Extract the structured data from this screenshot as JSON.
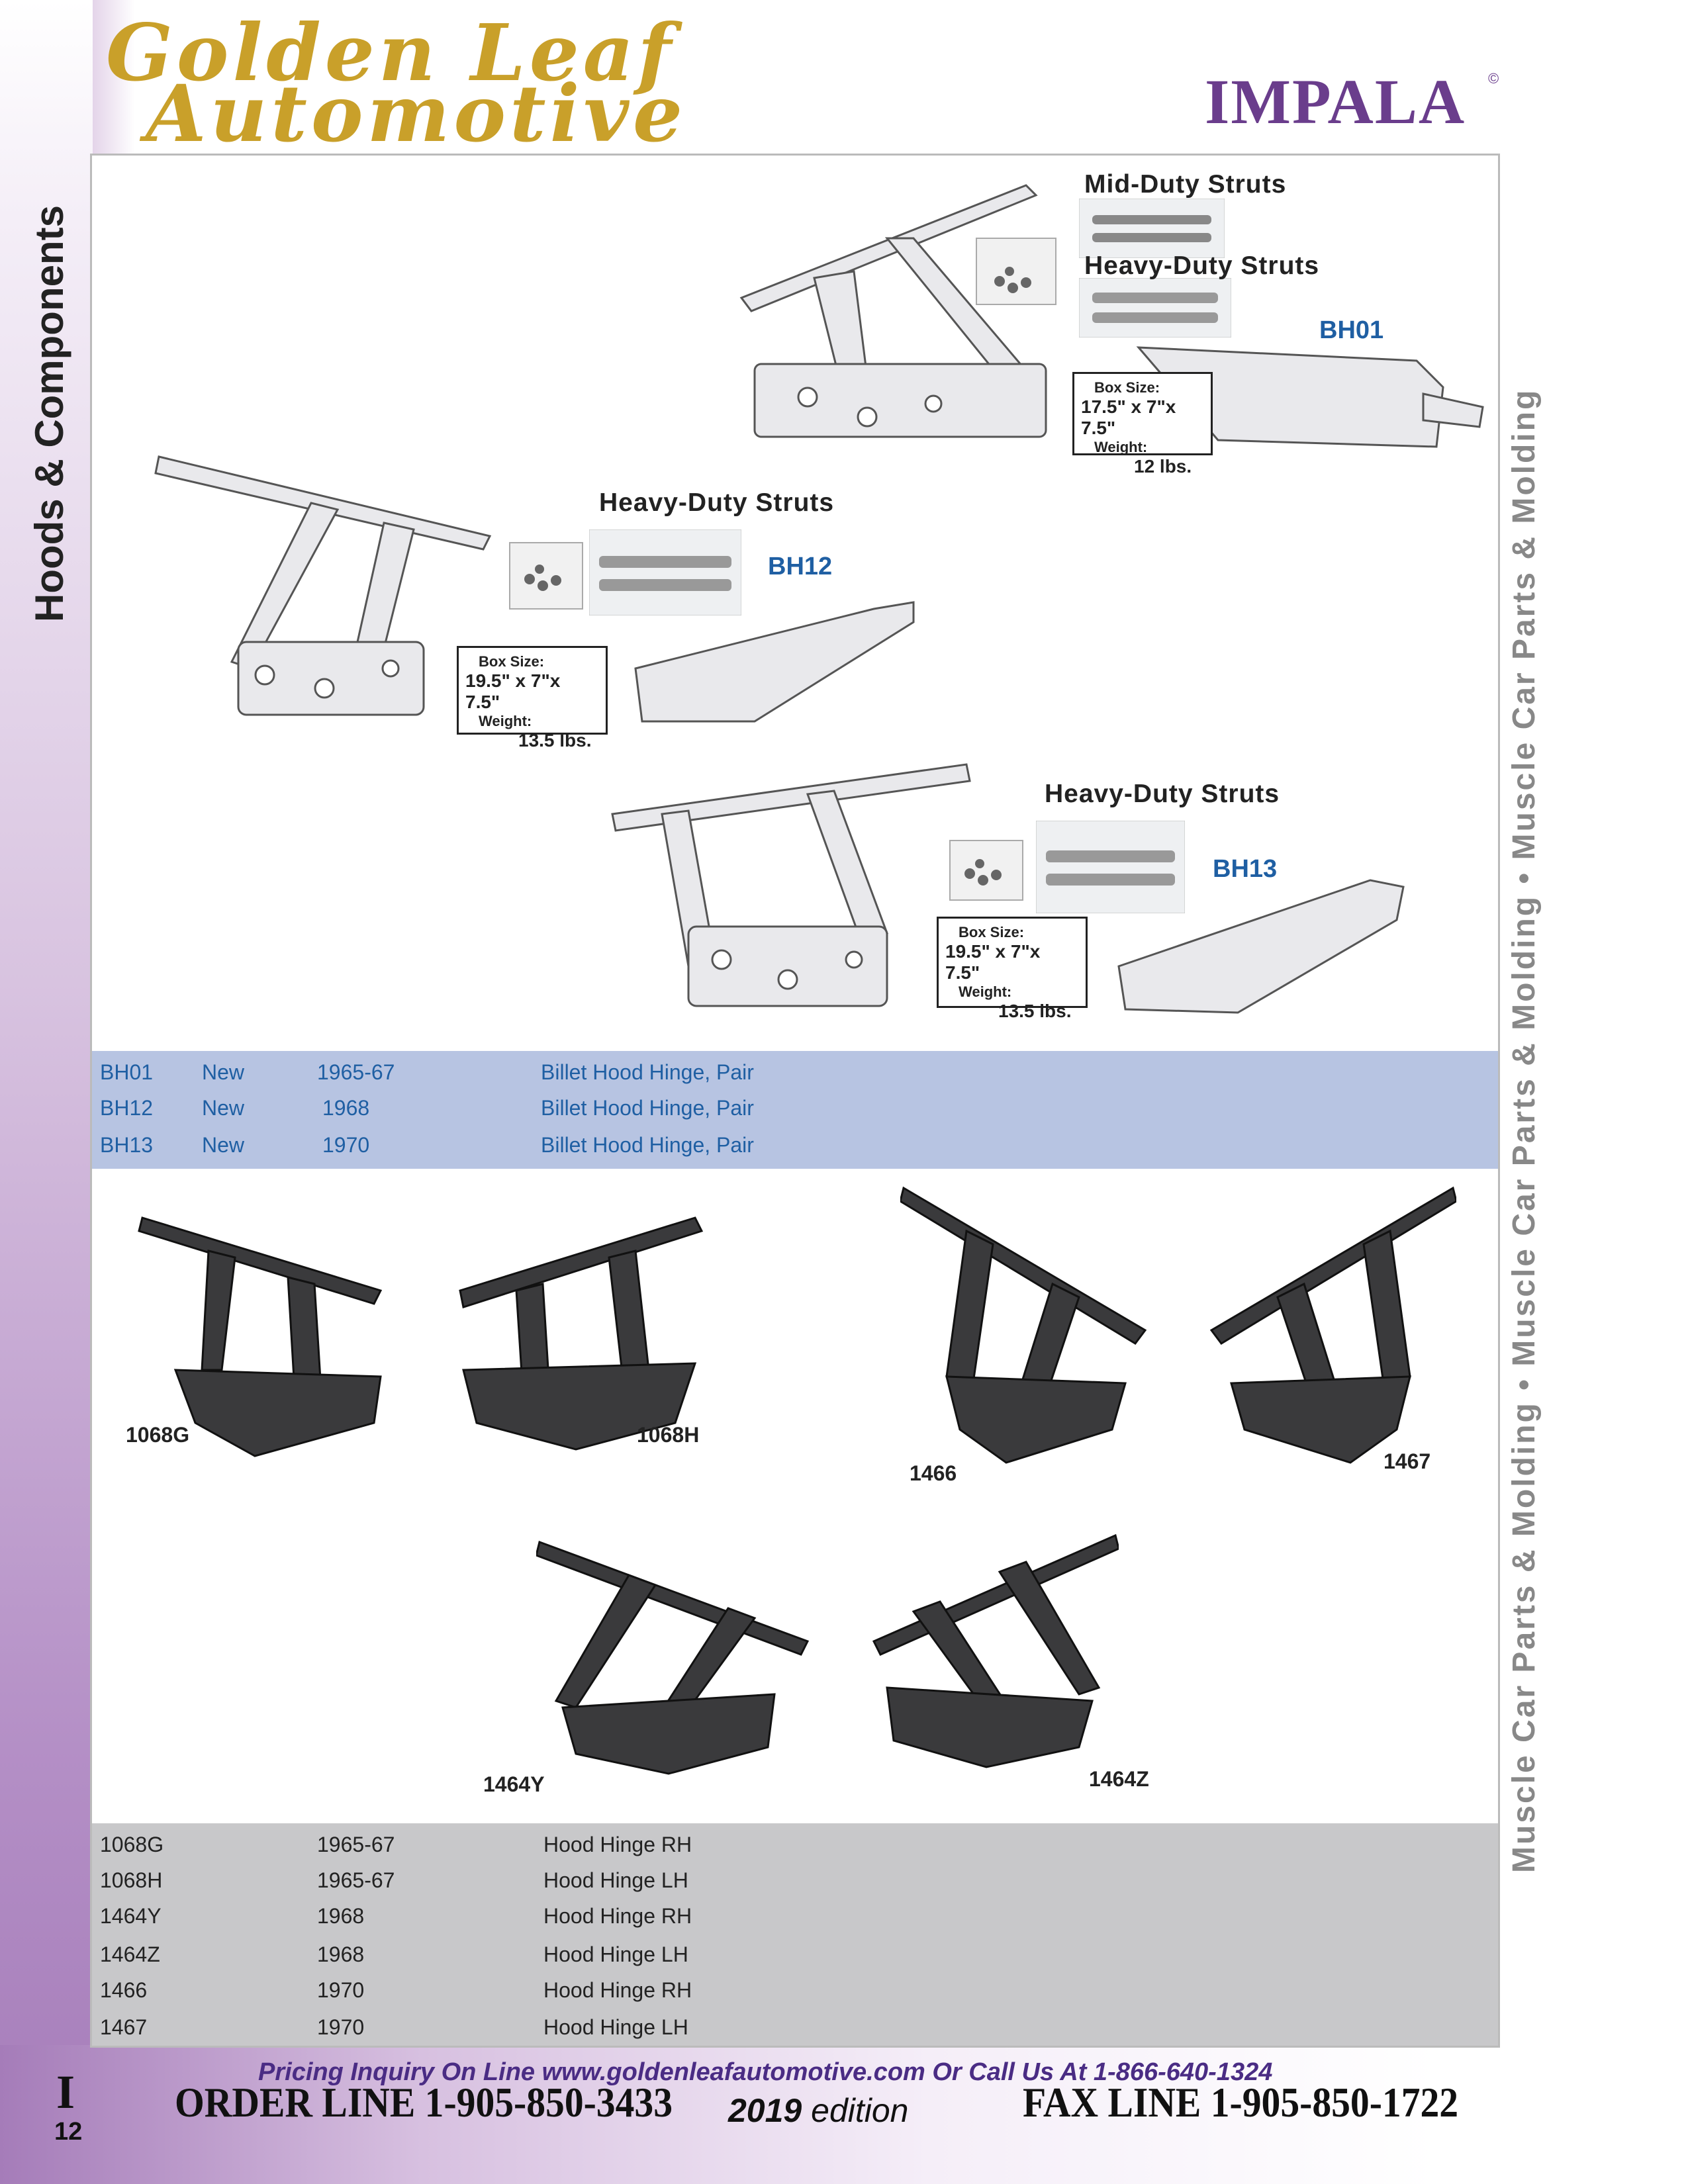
{
  "brand": {
    "line1": "Golden Leaf",
    "line2": "Automotive"
  },
  "catalog": {
    "title": "IMPALA",
    "copyright": "©"
  },
  "side_left": "Hoods & Components",
  "side_right": "Muscle Car Parts & Molding  •  Muscle Car Parts & Molding  •  Muscle Car Parts & Molding",
  "bh01": {
    "heading1": "Mid-Duty Struts",
    "heading2": "Heavy-Duty Struts",
    "code": "BH01",
    "box_label": "Box Size:",
    "box_dims": "17.5\" x 7\"x 7.5\"",
    "weight_label": "Weight:",
    "weight": "12 lbs."
  },
  "bh12": {
    "heading": "Heavy-Duty Struts",
    "code": "BH12",
    "box_label": "Box Size:",
    "box_dims": "19.5\" x 7\"x 7.5\"",
    "weight_label": "Weight:",
    "weight": "13.5 lbs."
  },
  "bh13": {
    "heading": "Heavy-Duty Struts",
    "code": "BH13",
    "box_label": "Box Size:",
    "box_dims": "19.5\" x 7\"x 7.5\"",
    "weight_label": "Weight:",
    "weight": "13.5 lbs."
  },
  "billet_table": [
    {
      "part": "BH01",
      "status": "New",
      "year": "1965-67",
      "desc": "Billet Hood Hinge, Pair"
    },
    {
      "part": "BH12",
      "status": "New",
      "year": "1968",
      "desc": "Billet Hood Hinge, Pair"
    },
    {
      "part": "BH13",
      "status": "New",
      "year": "1970",
      "desc": "Billet Hood Hinge, Pair"
    }
  ],
  "hinge_labels": {
    "g1068": "1068G",
    "h1068": "1068H",
    "p1466": "1466",
    "p1467": "1467",
    "y1464": "1464Y",
    "z1464": "1464Z"
  },
  "hinge_table": [
    {
      "part": "1068G",
      "year": "1965-67",
      "desc": "Hood Hinge RH"
    },
    {
      "part": "1068H",
      "year": "1965-67",
      "desc": "Hood Hinge LH"
    },
    {
      "part": "1464Y",
      "year": "1968",
      "desc": "Hood Hinge RH"
    },
    {
      "part": "1464Z",
      "year": "1968",
      "desc": "Hood Hinge LH"
    },
    {
      "part": "1466",
      "year": "1970",
      "desc": "Hood Hinge RH"
    },
    {
      "part": "1467",
      "year": "1970",
      "desc": "Hood Hinge LH"
    }
  ],
  "footer": {
    "inquiry": "Pricing Inquiry On Line  www.goldenleafautomotive.com Or Call Us At 1-866-640-1324",
    "order_line": "ORDER LINE 1-905-850-3433",
    "edition_year": "2019",
    "edition_word": "edition",
    "fax_line": "FAX LINE 1-905-850-1722",
    "section": "I",
    "page": "12"
  },
  "colors": {
    "gold": "#c9a02a",
    "purple": "#6a3d8c",
    "blue": "#1f5fa3",
    "table_blue": "#b7c4e2",
    "table_gray": "#c8c8ca"
  }
}
